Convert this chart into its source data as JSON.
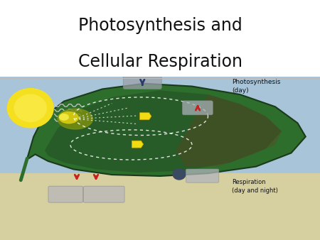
{
  "title_line1": "Photosynthesis and",
  "title_line2": "Cellular Respiration",
  "title_fontsize": 17,
  "title_color": "#111111",
  "bg_color": "#ffffff",
  "sky_color": "#a8c4d8",
  "ground_color": "#d6cfa0",
  "leaf_outer": "#2d6e2d",
  "leaf_dark": "#1a4a1a",
  "leaf_brown_right": "#5a3a1a",
  "sun_outer": "#f5e020",
  "sun_inner": "#f8e840",
  "chloro_color": "#b8c820",
  "chloro_glow": "#e0d040",
  "label_photo": "Photosynthesis\n(day)",
  "label_resp": "Respiration\n(day and night)",
  "figure_width": 4.5,
  "figure_height": 3.38,
  "dpi": 100
}
